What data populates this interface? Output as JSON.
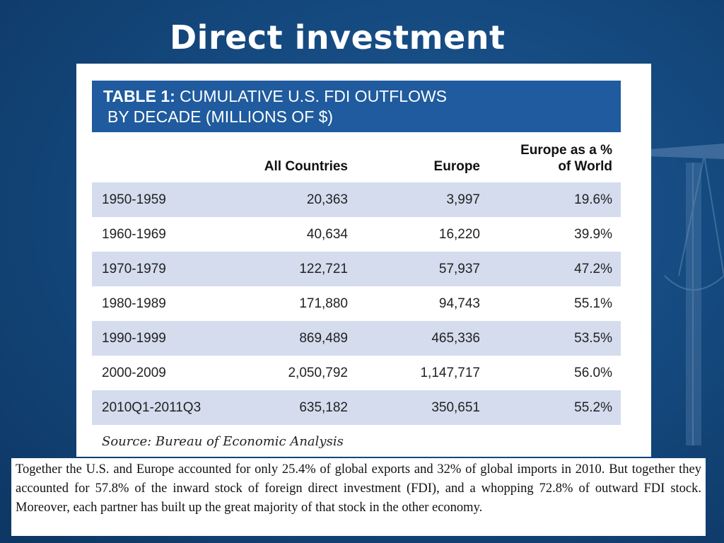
{
  "slide": {
    "title": "Direct investment"
  },
  "table": {
    "title_bold": "TABLE 1:",
    "title_rest": " CUMULATIVE U.S. FDI OUTFLOWS",
    "title_line2": "BY DECADE (MILLIONS OF $)",
    "headers": {
      "all_countries": "All Countries",
      "europe": "Europe",
      "pct_line1": "Europe as a %",
      "pct_line2": "of World"
    },
    "rows": [
      {
        "decade": "1950-1959",
        "all": "20,363",
        "europe": "3,997",
        "pct": "19.6%"
      },
      {
        "decade": "1960-1969",
        "all": "40,634",
        "europe": "16,220",
        "pct": "39.9%"
      },
      {
        "decade": "1970-1979",
        "all": "122,721",
        "europe": "57,937",
        "pct": "47.2%"
      },
      {
        "decade": "1980-1989",
        "all": "171,880",
        "europe": "94,743",
        "pct": "55.1%"
      },
      {
        "decade": "1990-1999",
        "all": "869,489",
        "europe": "465,336",
        "pct": "53.5%"
      },
      {
        "decade": "2000-2009",
        "all": "2,050,792",
        "europe": "1,147,717",
        "pct": "56.0%"
      },
      {
        "decade": "2010Q1-2011Q3",
        "all": "635,182",
        "europe": "350,651",
        "pct": "55.2%"
      }
    ],
    "source": "Source: Bureau of Economic Analysis"
  },
  "note": {
    "text": "Together the U.S. and Europe accounted for only 25.4% of global exports and 32% of global imports in 2010. But together they accounted for 57.8% of the inward stock of foreign direct investment (FDI), and a whopping 72.8% of outward FDI stock. Moreover, each partner has built up the great majority of that stock in the other economy."
  },
  "colors": {
    "background": "#154a80",
    "header_bar": "#1f5b9e",
    "row_shade": "#d4dcee"
  },
  "decoration": {
    "icon": "scales-of-justice-icon"
  }
}
